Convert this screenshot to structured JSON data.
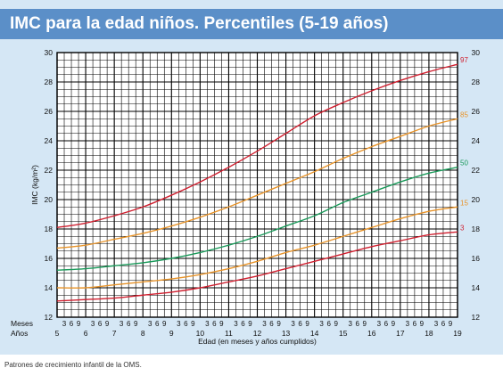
{
  "header": {
    "title": "IMC para la edad niños. Percentiles (5-19 años)"
  },
  "footer": {
    "text": "Patrones de crecimiento infantil de la OMS."
  },
  "colors": {
    "title_bar": "#5b8fc8",
    "panel": "#d5e7f5",
    "grid": "#000000",
    "p97": "#d02030",
    "p85": "#e8942a",
    "p50": "#1a9a5a",
    "p15": "#e8942a",
    "p3": "#d02030"
  },
  "chart_data": {
    "type": "line",
    "xlabel": "Edad (en meses y años cumplidos)",
    "ylabel": "IMC (kg/m²)",
    "row_labels": {
      "months": "Meses",
      "years": "Años"
    },
    "month_ticks": [
      "3",
      "6",
      "9"
    ],
    "xlim": [
      5,
      19
    ],
    "ylim": [
      12,
      30
    ],
    "x_ticks": [
      5,
      6,
      7,
      8,
      9,
      10,
      11,
      12,
      13,
      14,
      15,
      16,
      17,
      18,
      19
    ],
    "y_ticks": [
      12,
      14,
      16,
      18,
      20,
      22,
      24,
      26,
      28,
      30
    ],
    "grid": true,
    "series": [
      {
        "name": "97",
        "color_key": "p97",
        "x": [
          5,
          6,
          7,
          8,
          9,
          10,
          11,
          12,
          13,
          14,
          15,
          16,
          17,
          18,
          19
        ],
        "y": [
          18.1,
          18.4,
          18.9,
          19.5,
          20.3,
          21.2,
          22.2,
          23.3,
          24.5,
          25.7,
          26.6,
          27.4,
          28.1,
          28.7,
          29.2
        ]
      },
      {
        "name": "85",
        "color_key": "p85",
        "x": [
          5,
          6,
          7,
          8,
          9,
          10,
          11,
          12,
          13,
          14,
          15,
          16,
          17,
          18,
          19
        ],
        "y": [
          16.7,
          16.9,
          17.3,
          17.7,
          18.2,
          18.8,
          19.5,
          20.3,
          21.1,
          21.9,
          22.8,
          23.6,
          24.3,
          25.0,
          25.5
        ]
      },
      {
        "name": "50",
        "color_key": "p50",
        "x": [
          5,
          6,
          7,
          8,
          9,
          10,
          11,
          12,
          13,
          14,
          15,
          16,
          17,
          18,
          19
        ],
        "y": [
          15.2,
          15.3,
          15.5,
          15.7,
          16.0,
          16.4,
          16.9,
          17.5,
          18.2,
          18.9,
          19.8,
          20.5,
          21.2,
          21.8,
          22.2
        ]
      },
      {
        "name": "15",
        "color_key": "p15",
        "x": [
          5,
          6,
          7,
          8,
          9,
          10,
          11,
          12,
          13,
          14,
          15,
          16,
          17,
          18,
          19
        ],
        "y": [
          14.0,
          14.0,
          14.2,
          14.4,
          14.6,
          14.9,
          15.3,
          15.8,
          16.4,
          16.9,
          17.5,
          18.1,
          18.7,
          19.2,
          19.5
        ]
      },
      {
        "name": "3",
        "color_key": "p3",
        "x": [
          5,
          6,
          7,
          8,
          9,
          10,
          11,
          12,
          13,
          14,
          15,
          16,
          17,
          18,
          19
        ],
        "y": [
          13.1,
          13.2,
          13.3,
          13.5,
          13.7,
          14.0,
          14.4,
          14.8,
          15.3,
          15.8,
          16.3,
          16.8,
          17.2,
          17.6,
          17.8
        ]
      }
    ]
  }
}
